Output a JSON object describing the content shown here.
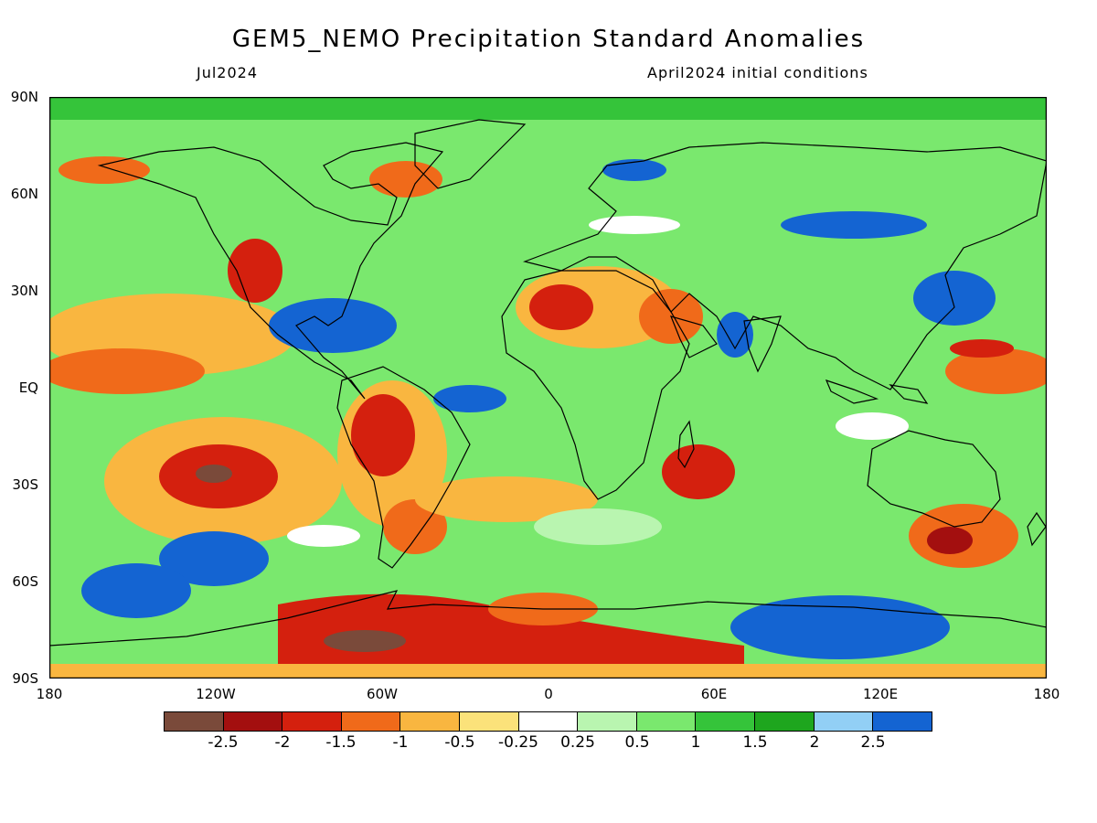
{
  "header": {
    "title": "GEM5_NEMO Precipitation Standard Anomalies",
    "month": "Jul2024",
    "init": "April2024 initial conditions"
  },
  "axes": {
    "lat_labels": [
      "90N",
      "60N",
      "30N",
      "EQ",
      "30S",
      "60S",
      "90S"
    ],
    "lon_labels": [
      "180",
      "120W",
      "60W",
      "0",
      "60E",
      "120E",
      "180"
    ]
  },
  "colorbar": {
    "colors": [
      "#7a4a3a",
      "#a30f0f",
      "#d4200e",
      "#f06a1a",
      "#f9b640",
      "#fbe27a",
      "#ffffff",
      "#b9f5b0",
      "#7ae86e",
      "#35c43a",
      "#1ea61e",
      "#92cff5",
      "#1464d2"
    ],
    "labels": [
      "-2.5",
      "-2",
      "-1.5",
      "-1",
      "-0.5",
      "-0.25",
      "0.25",
      "0.5",
      "1",
      "1.5",
      "2",
      "2.5"
    ]
  }
}
